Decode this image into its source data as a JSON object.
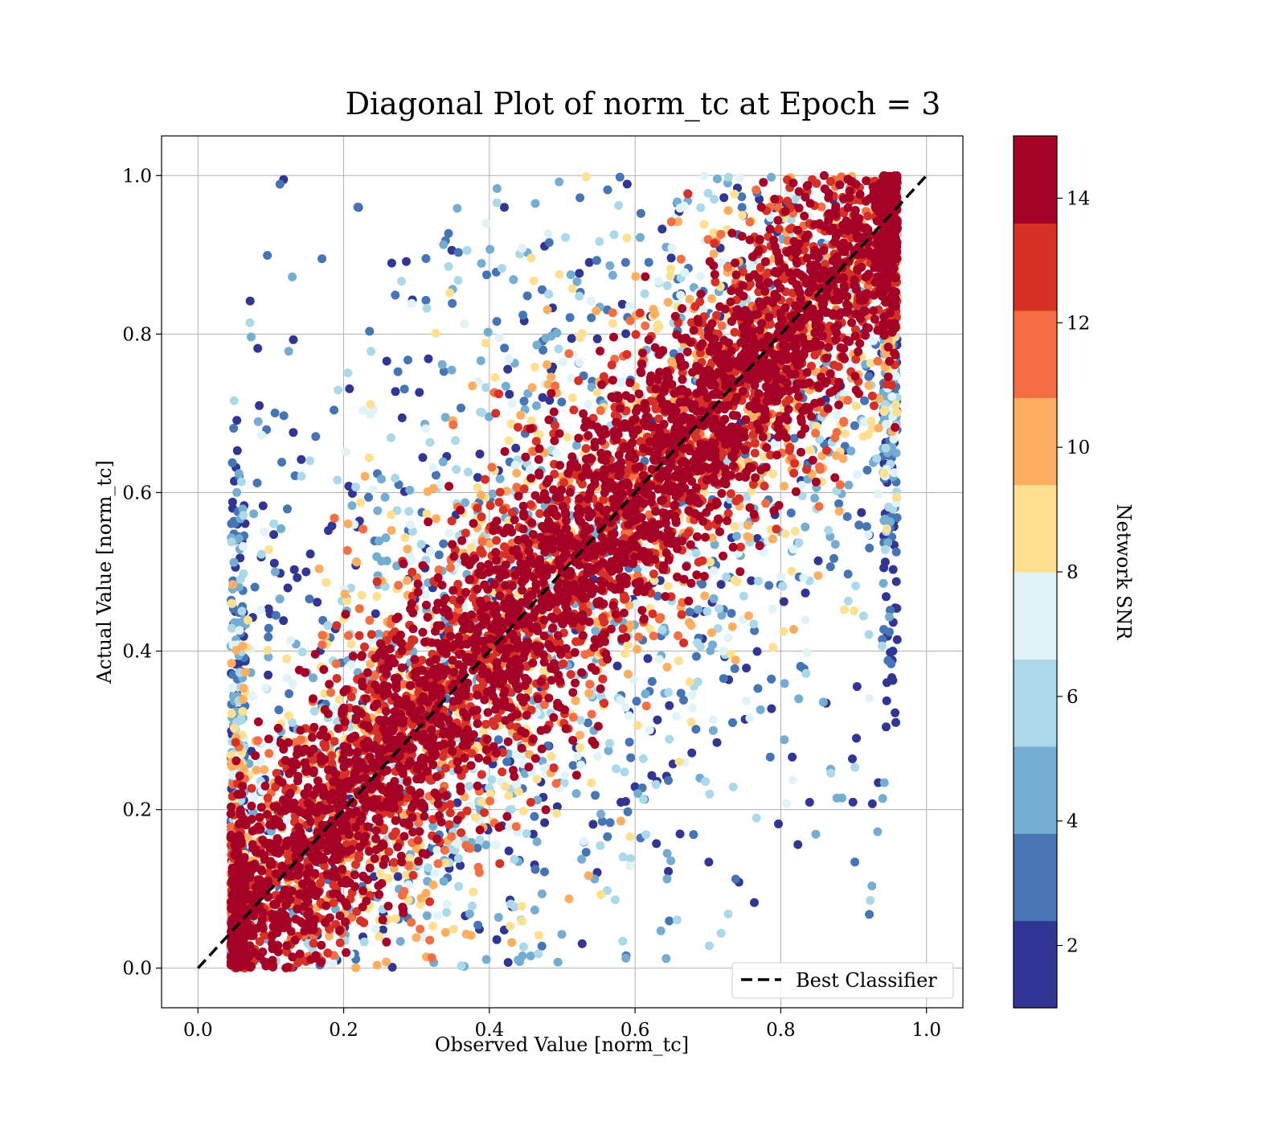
{
  "chart_data": {
    "type": "scatter",
    "title": "Diagonal Plot of norm_tc at Epoch = 3",
    "xlabel": "Observed Value [norm_tc]",
    "ylabel": "Actual Value [norm_tc]",
    "xlim": [
      -0.05,
      1.05
    ],
    "ylim": [
      -0.05,
      1.05
    ],
    "x_ticks": [
      "0.0",
      "0.2",
      "0.4",
      "0.6",
      "0.8",
      "1.0"
    ],
    "y_ticks": [
      "0.0",
      "0.2",
      "0.4",
      "0.6",
      "0.8",
      "1.0"
    ],
    "grid": true,
    "legend": {
      "position": "lower-right",
      "entries": [
        "Best Classifier"
      ]
    },
    "reference_line": {
      "name": "Best Classifier",
      "x": [
        0,
        1
      ],
      "y": [
        0,
        1
      ],
      "style": "dashed",
      "color": "#000000"
    },
    "colorbar": {
      "label": "Network SNR",
      "range": [
        1,
        15
      ],
      "ticks": [
        "2",
        "4",
        "6",
        "8",
        "10",
        "12",
        "14"
      ],
      "colors": [
        "#313695",
        "#4575b4",
        "#74add1",
        "#abd9e9",
        "#e0f3f8",
        "#fee090",
        "#fdae61",
        "#f46d43",
        "#d73027",
        "#a50026"
      ]
    },
    "scatter_summary": {
      "point_count": 9000,
      "x_range": [
        0.04,
        0.96
      ],
      "y_range": [
        0.0,
        1.0
      ],
      "description_of_distribution": "dense high-SNR points along the diagonal; low-SNR points spread away from it"
    }
  }
}
